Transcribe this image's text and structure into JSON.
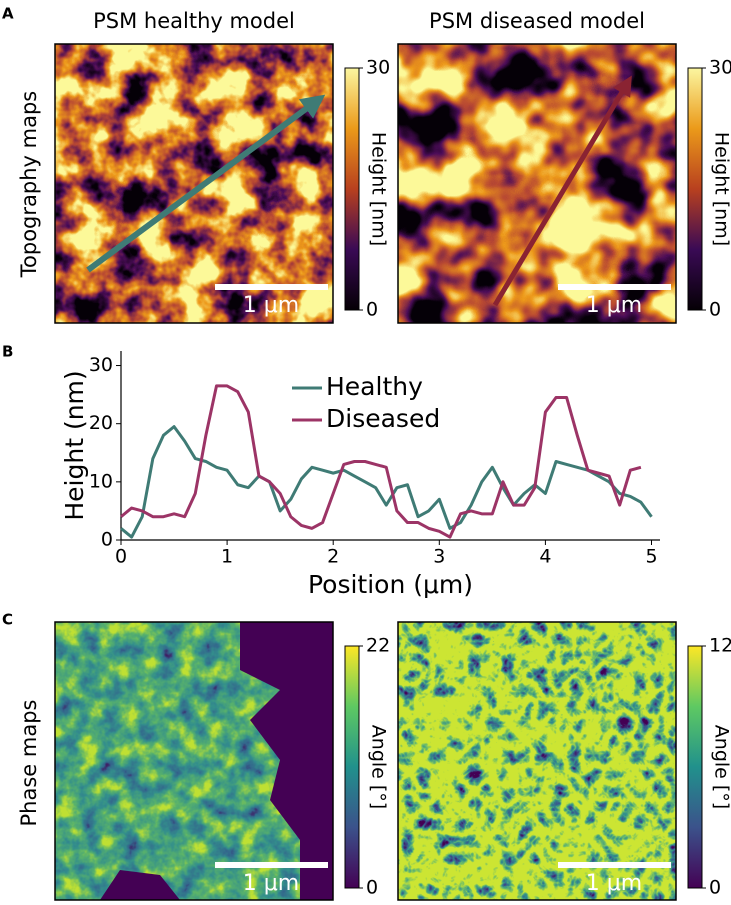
{
  "panel_labels": [
    "A",
    "B",
    "C"
  ],
  "topography": {
    "row_label": "Topography maps",
    "maps": [
      {
        "title": "PSM healthy model",
        "scale_bar": "1 μm",
        "colorbar": {
          "label": "Height [nm]",
          "ticks": [
            0,
            30
          ]
        }
      },
      {
        "title": "PSM diseased model",
        "scale_bar": "1 μm",
        "colorbar": {
          "label": "Height [nm]",
          "ticks": [
            0,
            30
          ]
        }
      }
    ]
  },
  "chart_data": {
    "type": "line",
    "xlabel": "Position (μm)",
    "ylabel": "Height (nm)",
    "x": [
      0,
      0.1,
      0.2,
      0.3,
      0.4,
      0.5,
      0.6,
      0.7,
      0.8,
      0.9,
      1.0,
      1.1,
      1.2,
      1.3,
      1.4,
      1.5,
      1.6,
      1.7,
      1.8,
      1.9,
      2.0,
      2.1,
      2.2,
      2.3,
      2.4,
      2.5,
      2.6,
      2.7,
      2.8,
      2.9,
      3.0,
      3.1,
      3.2,
      3.3,
      3.4,
      3.5,
      3.6,
      3.7,
      3.8,
      3.9,
      4.0,
      4.1,
      4.2,
      4.3,
      4.4,
      4.5,
      4.6,
      4.7,
      4.8,
      4.9,
      5.0
    ],
    "series": [
      {
        "name": "Healthy",
        "color": "#3f7b75",
        "values": [
          2,
          0.5,
          4,
          14,
          18,
          19.5,
          17,
          14,
          13.5,
          12.5,
          12,
          9.5,
          9,
          11,
          10,
          5,
          7,
          10.5,
          12.5,
          12,
          11.5,
          12,
          11,
          10,
          9,
          6,
          9,
          9.5,
          4,
          5,
          7,
          2,
          3,
          6,
          10,
          12.5,
          9,
          6,
          8,
          9.5,
          8,
          13.5,
          13,
          12.5,
          12,
          11,
          10,
          8,
          7.5,
          6.5,
          4
        ]
      },
      {
        "name": "Diseased",
        "color": "#9c3466",
        "values": [
          4,
          5.5,
          5,
          4,
          4,
          4.5,
          4,
          8,
          18,
          26.5,
          26.5,
          25.5,
          22,
          11,
          10,
          8,
          4,
          2.5,
          2,
          3,
          8,
          13,
          13.5,
          13.5,
          13,
          12.5,
          5,
          3,
          3,
          2,
          1.5,
          0.5,
          4.5,
          5,
          4.5,
          4.5,
          10,
          6,
          6,
          9,
          22,
          24.5,
          24.5,
          18,
          12,
          11.5,
          11,
          6,
          12,
          12.5,
          null
        ]
      }
    ],
    "xlim": [
      0,
      5.08
    ],
    "ylim": [
      0,
      32.5
    ],
    "xticks": [
      0,
      1,
      2,
      3,
      4,
      5
    ],
    "yticks": [
      0,
      10,
      20,
      30
    ]
  },
  "phase": {
    "row_label": "Phase maps",
    "maps": [
      {
        "scale_bar": "1 μm",
        "colorbar": {
          "label": "Angle [°]",
          "ticks": [
            0,
            22
          ]
        }
      },
      {
        "scale_bar": "1 μm",
        "colorbar": {
          "label": "Angle [°]",
          "ticks": [
            0,
            12
          ]
        }
      }
    ]
  }
}
